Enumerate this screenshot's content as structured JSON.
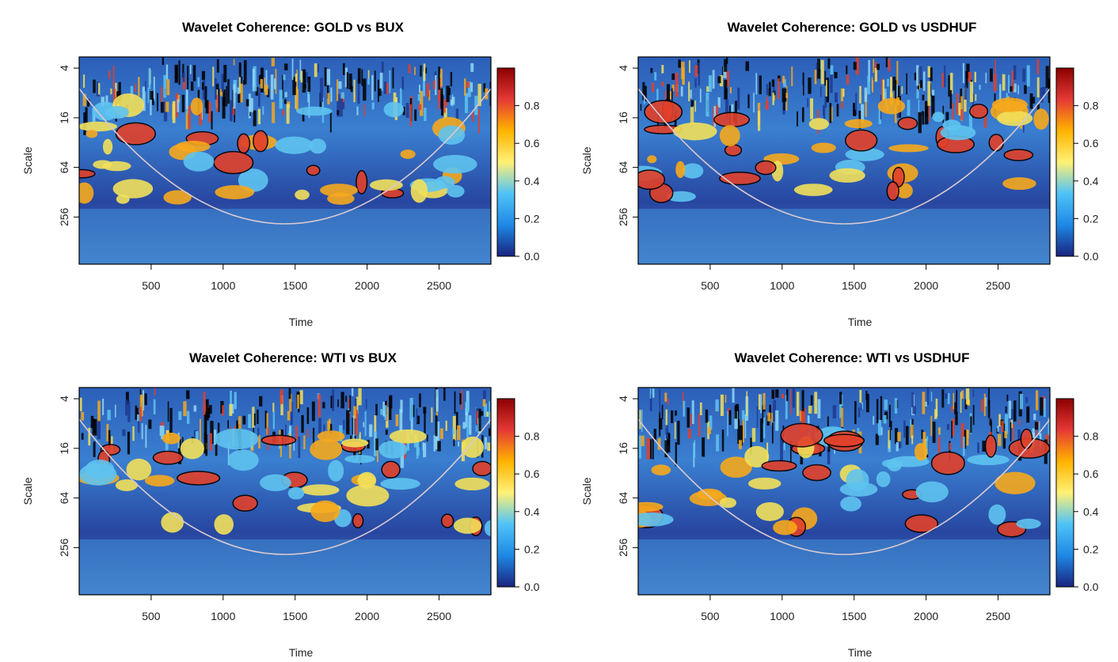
{
  "chart_data": [
    {
      "type": "heatmap",
      "title": "Wavelet Coherence: GOLD vs BUX",
      "xlabel": "Time",
      "ylabel": "Scale",
      "xlim": [
        0,
        2860
      ],
      "x_ticks": [
        500,
        1000,
        1500,
        2000,
        2500
      ],
      "y_ticks": [
        4,
        16,
        64,
        256
      ],
      "y_scale": "log2",
      "colorbar": {
        "ticks": [
          0.0,
          0.2,
          0.4,
          0.6,
          0.8
        ],
        "labels": [
          "0.0",
          "0.2",
          "0.4",
          "0.6",
          "0.8"
        ],
        "range": [
          0,
          1
        ],
        "colors": [
          "#1a237e",
          "#1e88e5",
          "#4fc3f7",
          "#fff176",
          "#ffb300",
          "#e53935",
          "#8b0000"
        ]
      },
      "grid": false
    },
    {
      "type": "heatmap",
      "title": "Wavelet Coherence: GOLD vs USDHUF",
      "xlabel": "Time",
      "ylabel": "Scale",
      "xlim": [
        0,
        2860
      ],
      "x_ticks": [
        500,
        1000,
        1500,
        2000,
        2500
      ],
      "y_ticks": [
        4,
        16,
        64,
        256
      ],
      "y_scale": "log2",
      "colorbar": {
        "ticks": [
          0.0,
          0.2,
          0.4,
          0.6,
          0.8
        ],
        "labels": [
          "0.0",
          "0.2",
          "0.4",
          "0.6",
          "0.8"
        ],
        "range": [
          0,
          1
        ],
        "colors": [
          "#1a237e",
          "#1e88e5",
          "#4fc3f7",
          "#fff176",
          "#ffb300",
          "#e53935",
          "#8b0000"
        ]
      },
      "grid": false
    },
    {
      "type": "heatmap",
      "title": "Wavelet Coherence: WTI vs BUX",
      "xlabel": "Time",
      "ylabel": "Scale",
      "xlim": [
        0,
        2860
      ],
      "x_ticks": [
        500,
        1000,
        1500,
        2000,
        2500
      ],
      "y_ticks": [
        4,
        16,
        64,
        256
      ],
      "y_scale": "log2",
      "colorbar": {
        "ticks": [
          0.0,
          0.2,
          0.4,
          0.6,
          0.8
        ],
        "labels": [
          "0.0",
          "0.2",
          "0.4",
          "0.6",
          "0.8"
        ],
        "range": [
          0,
          1
        ],
        "colors": [
          "#1a237e",
          "#1e88e5",
          "#4fc3f7",
          "#fff176",
          "#ffb300",
          "#e53935",
          "#8b0000"
        ]
      },
      "grid": false
    },
    {
      "type": "heatmap",
      "title": "Wavelet Coherence: WTI vs USDHUF",
      "xlabel": "Time",
      "ylabel": "Scale",
      "xlim": [
        0,
        2860
      ],
      "x_ticks": [
        500,
        1000,
        1500,
        2000,
        2500
      ],
      "y_ticks": [
        4,
        16,
        64,
        256
      ],
      "y_scale": "log2",
      "colorbar": {
        "ticks": [
          0.0,
          0.2,
          0.4,
          0.6,
          0.8
        ],
        "labels": [
          "0.0",
          "0.2",
          "0.4",
          "0.6",
          "0.8"
        ],
        "range": [
          0,
          1
        ],
        "colors": [
          "#1a237e",
          "#1e88e5",
          "#4fc3f7",
          "#fff176",
          "#ffb300",
          "#e53935",
          "#8b0000"
        ]
      },
      "grid": false
    }
  ]
}
